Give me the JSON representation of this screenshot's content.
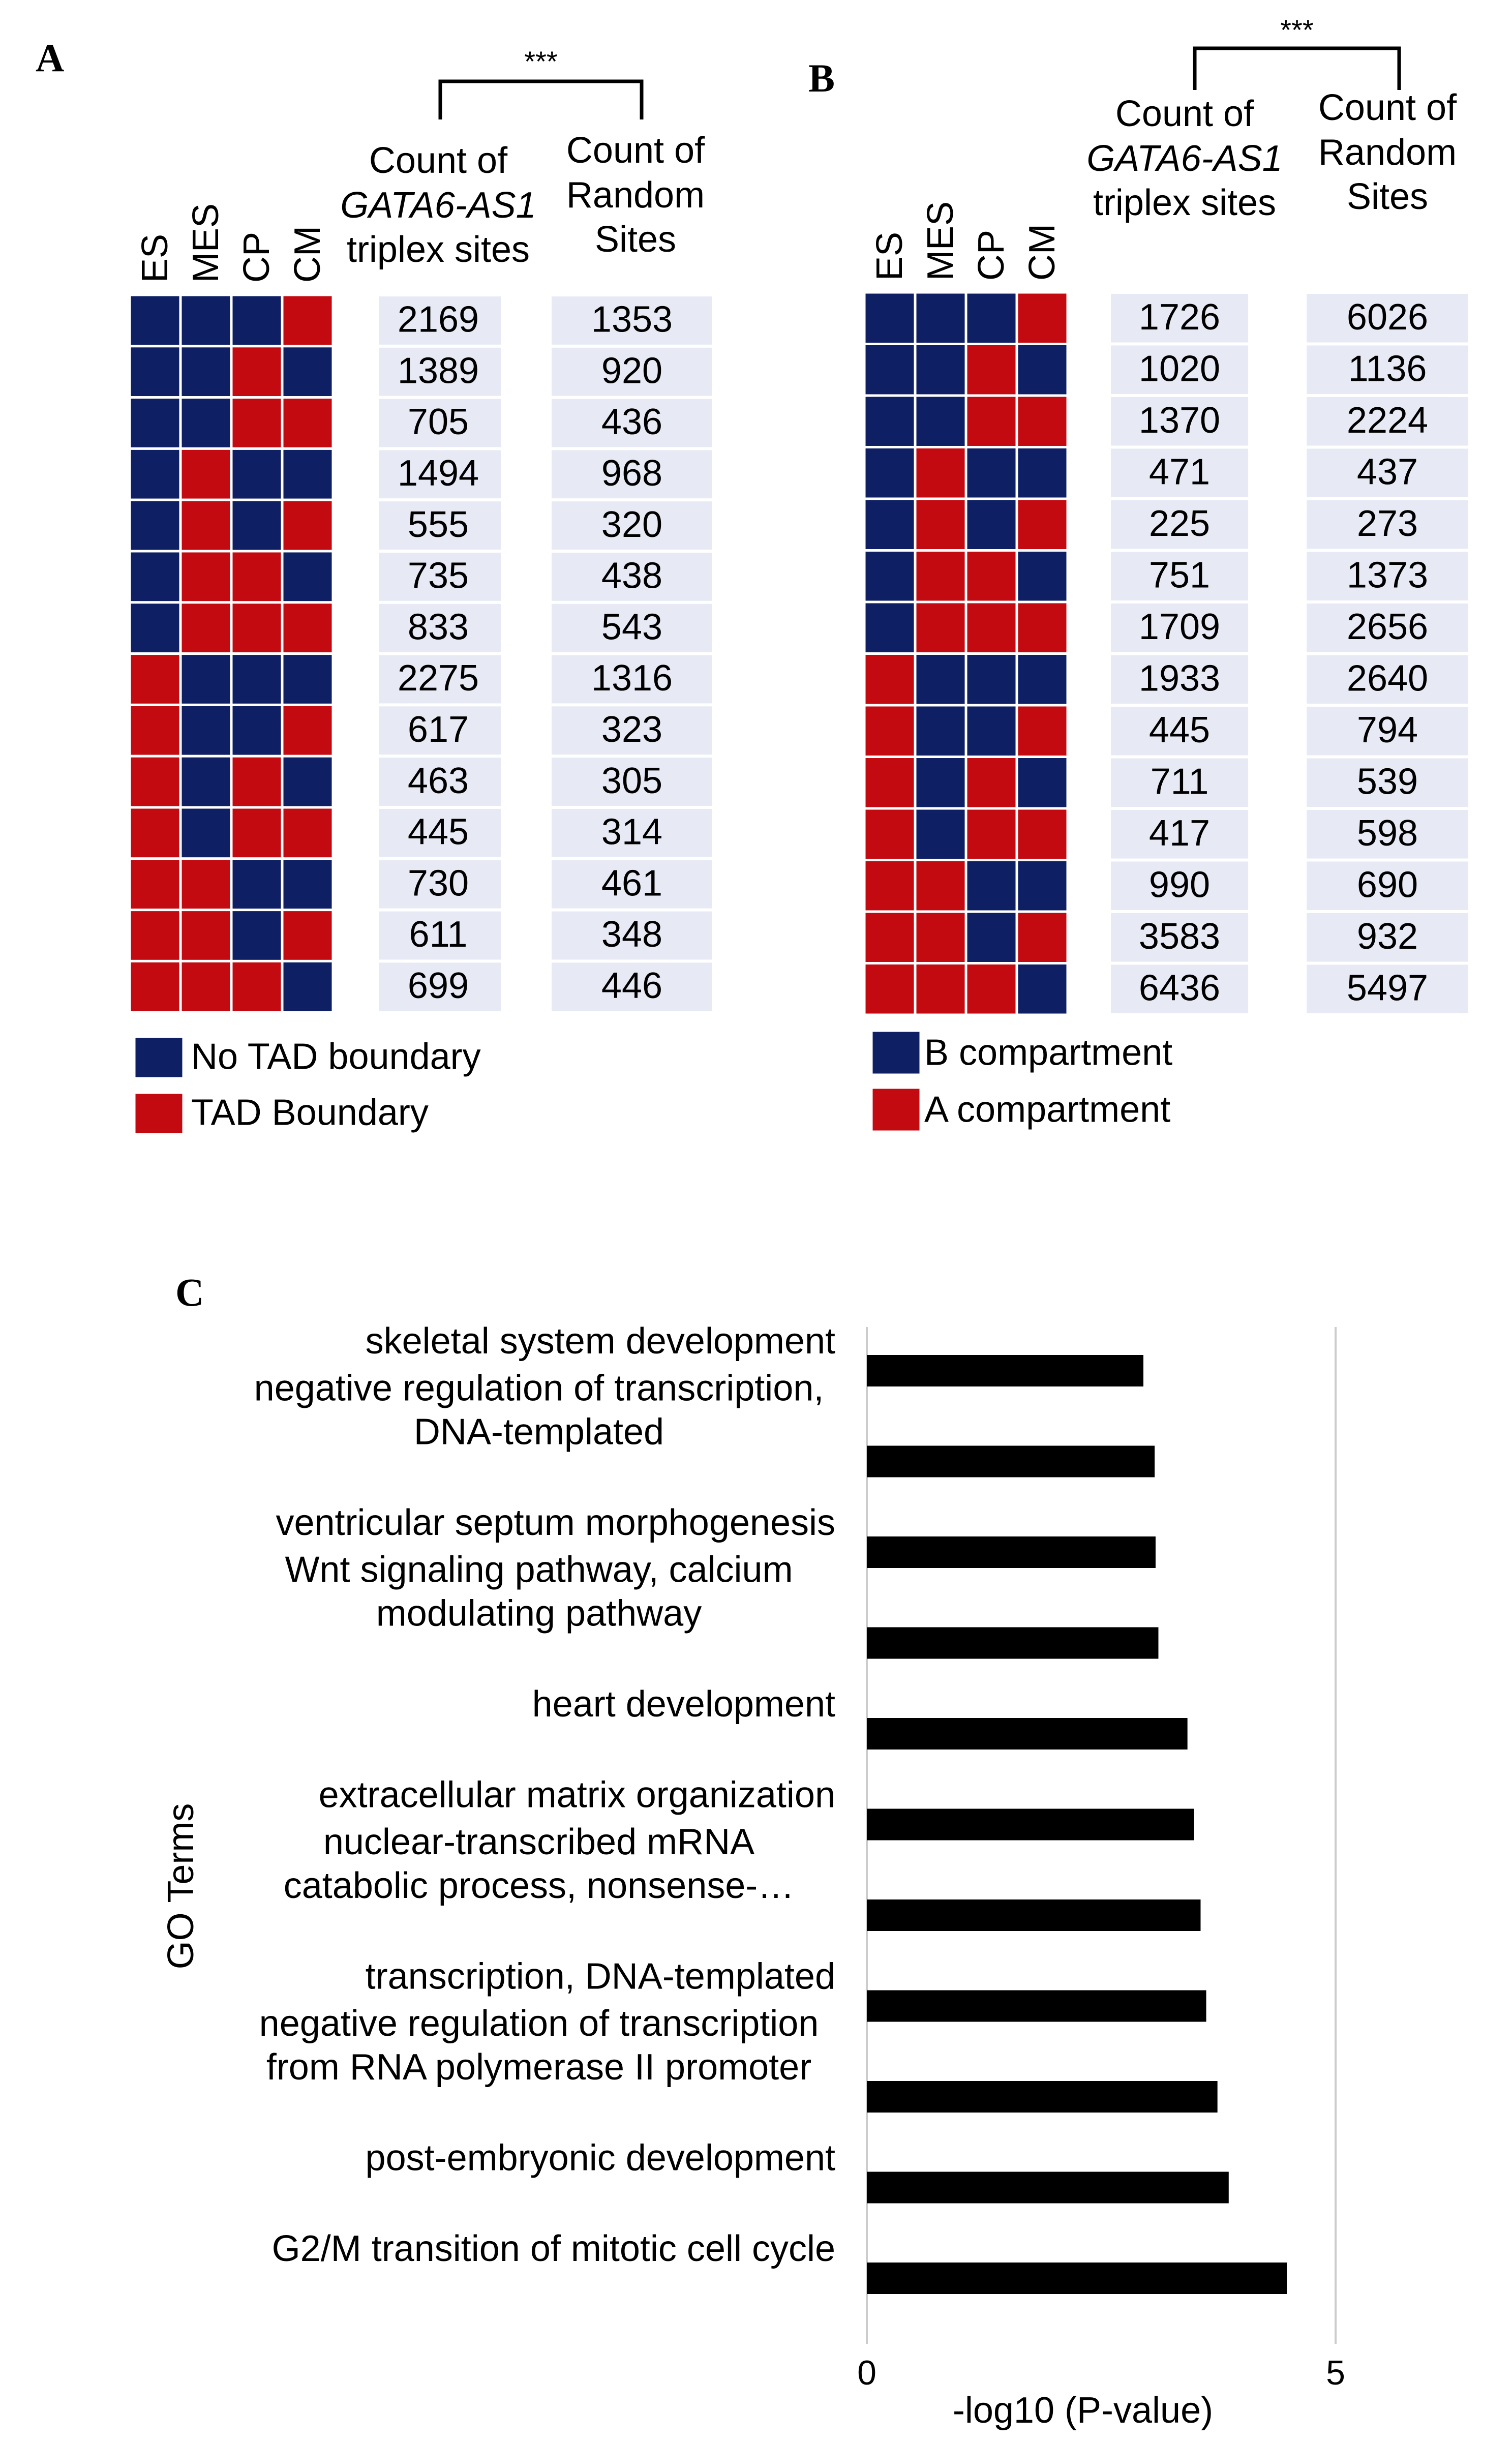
{
  "chart_data": [
    {
      "type": "heatmap",
      "panel": "A",
      "columns": [
        "ES",
        "MES",
        "CP",
        "CM"
      ],
      "patterns": [
        [
          "no",
          "no",
          "no",
          "yes"
        ],
        [
          "no",
          "no",
          "yes",
          "no"
        ],
        [
          "no",
          "no",
          "yes",
          "yes"
        ],
        [
          "no",
          "yes",
          "no",
          "no"
        ],
        [
          "no",
          "yes",
          "no",
          "yes"
        ],
        [
          "no",
          "yes",
          "yes",
          "no"
        ],
        [
          "no",
          "yes",
          "yes",
          "yes"
        ],
        [
          "yes",
          "no",
          "no",
          "no"
        ],
        [
          "yes",
          "no",
          "no",
          "yes"
        ],
        [
          "yes",
          "no",
          "yes",
          "no"
        ],
        [
          "yes",
          "no",
          "yes",
          "yes"
        ],
        [
          "yes",
          "yes",
          "no",
          "no"
        ],
        [
          "yes",
          "yes",
          "no",
          "yes"
        ],
        [
          "yes",
          "yes",
          "yes",
          "no"
        ]
      ],
      "counts_header": {
        "line1": "Count of",
        "line2": "GATA6-AS1",
        "line3": "triplex sites"
      },
      "random_header": {
        "line1": "Count of",
        "line2": "Random",
        "line3": "Sites"
      },
      "counts": [
        2169,
        1389,
        705,
        1494,
        555,
        735,
        833,
        2275,
        617,
        463,
        445,
        730,
        611,
        699
      ],
      "random": [
        1353,
        920,
        436,
        968,
        320,
        438,
        543,
        1316,
        323,
        305,
        314,
        461,
        348,
        446
      ],
      "significance": "***",
      "legend": [
        {
          "key": "no",
          "label": "No TAD boundary",
          "color": "#0e1f63"
        },
        {
          "key": "yes",
          "label": "TAD Boundary",
          "color": "#c30a11"
        }
      ]
    },
    {
      "type": "heatmap",
      "panel": "B",
      "columns": [
        "ES",
        "MES",
        "CP",
        "CM"
      ],
      "patterns": [
        [
          "no",
          "no",
          "no",
          "yes"
        ],
        [
          "no",
          "no",
          "yes",
          "no"
        ],
        [
          "no",
          "no",
          "yes",
          "yes"
        ],
        [
          "no",
          "yes",
          "no",
          "no"
        ],
        [
          "no",
          "yes",
          "no",
          "yes"
        ],
        [
          "no",
          "yes",
          "yes",
          "no"
        ],
        [
          "no",
          "yes",
          "yes",
          "yes"
        ],
        [
          "yes",
          "no",
          "no",
          "no"
        ],
        [
          "yes",
          "no",
          "no",
          "yes"
        ],
        [
          "yes",
          "no",
          "yes",
          "no"
        ],
        [
          "yes",
          "no",
          "yes",
          "yes"
        ],
        [
          "yes",
          "yes",
          "no",
          "no"
        ],
        [
          "yes",
          "yes",
          "no",
          "yes"
        ],
        [
          "yes",
          "yes",
          "yes",
          "no"
        ]
      ],
      "counts_header": {
        "line1": "Count of",
        "line2": "GATA6-AS1",
        "line3": "triplex sites"
      },
      "random_header": {
        "line1": "Count of",
        "line2": "Random",
        "line3": "Sites"
      },
      "counts": [
        1726,
        1020,
        1370,
        471,
        225,
        751,
        1709,
        1933,
        445,
        711,
        417,
        990,
        3583,
        6436
      ],
      "random": [
        6026,
        1136,
        2224,
        437,
        273,
        1373,
        2656,
        2640,
        794,
        539,
        598,
        690,
        932,
        5497
      ],
      "significance": "***",
      "legend": [
        {
          "key": "no",
          "label": "B compartment",
          "color": "#0e1f63"
        },
        {
          "key": "yes",
          "label": "A compartment",
          "color": "#c30a11"
        }
      ]
    },
    {
      "type": "bar",
      "panel": "C",
      "orientation": "horizontal",
      "ylabel": "GO Terms",
      "xlabel": "-log10 (P-value)",
      "xlim": [
        0,
        5
      ],
      "xticks": [
        "0",
        "5"
      ],
      "categories": [
        {
          "lines": [
            "skeletal system development"
          ]
        },
        {
          "lines": [
            "negative regulation of transcription,",
            "DNA-templated"
          ]
        },
        {
          "lines": [
            "ventricular septum morphogenesis"
          ]
        },
        {
          "lines": [
            "Wnt signaling pathway, calcium",
            "modulating pathway"
          ]
        },
        {
          "lines": [
            "heart development"
          ]
        },
        {
          "lines": [
            "extracellular matrix organization"
          ]
        },
        {
          "lines": [
            "nuclear-transcribed mRNA",
            "catabolic process, nonsense-…"
          ]
        },
        {
          "lines": [
            "transcription, DNA-templated"
          ]
        },
        {
          "lines": [
            "negative regulation of transcription",
            "from RNA polymerase II promoter"
          ]
        },
        {
          "lines": [
            "post-embryonic development"
          ]
        },
        {
          "lines": [
            "G2/M transition of mitotic cell cycle"
          ]
        }
      ],
      "values": [
        2.95,
        3.07,
        3.08,
        3.11,
        3.42,
        3.49,
        3.56,
        3.62,
        3.74,
        3.86,
        4.48
      ],
      "bar_color": "#000000"
    }
  ]
}
